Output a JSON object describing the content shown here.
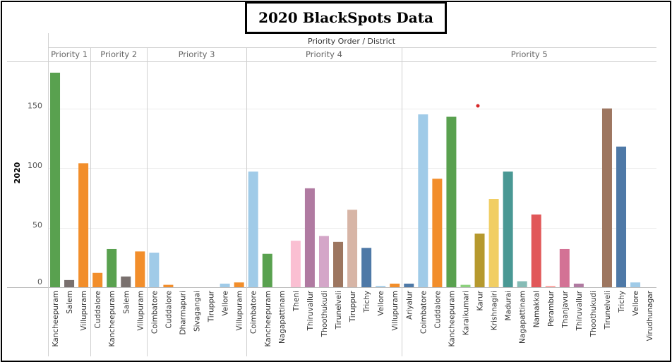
{
  "title": "2020 BlackSpots Data",
  "chart_data": {
    "type": "bar",
    "title": "2020 BlackSpots Data",
    "header": "Priority Order  /  District",
    "ylabel": "2020",
    "ylim": [
      0,
      180
    ],
    "yticks": [
      0,
      50,
      100,
      150
    ],
    "grid": true,
    "groups": [
      {
        "name": "Priority 1",
        "categories": [
          "Kancheepuram",
          "Salem",
          "Villupuram"
        ],
        "values": [
          180,
          6,
          104
        ],
        "colors": [
          "#59a14f",
          "#79706e",
          "#f28e2b"
        ]
      },
      {
        "name": "Priority 2",
        "categories": [
          "Cuddalore",
          "Kancheepuram",
          "Salem",
          "Villupuram"
        ],
        "values": [
          12,
          32,
          9,
          30
        ],
        "colors": [
          "#f28e2b",
          "#59a14f",
          "#79706e",
          "#f28e2b"
        ]
      },
      {
        "name": "Priority 3",
        "categories": [
          "Coimbatore",
          "Cuddalore",
          "Dharmapuri",
          "Sivagangai",
          "Tiruppur",
          "Vellore",
          "Villupuram"
        ],
        "values": [
          29,
          2,
          0,
          0,
          0,
          3,
          4
        ],
        "colors": [
          "#a0cbe8",
          "#f28e2b",
          "#bab0ac",
          "#bab0ac",
          "#d4a6c8",
          "#a0cbe8",
          "#f28e2b"
        ]
      },
      {
        "name": "Priority 4",
        "categories": [
          "Coimbatore",
          "Kancheepuram",
          "Nagapattinam",
          "Theni",
          "Thiruvallur",
          "Thoothukudi",
          "Tirunelveli",
          "Tiruppur",
          "Trichy",
          "Vellore",
          "Villupuram"
        ],
        "values": [
          97,
          28,
          0,
          39,
          83,
          43,
          38,
          65,
          33,
          1,
          3
        ],
        "colors": [
          "#a0cbe8",
          "#59a14f",
          "#86bcb6",
          "#fabfd2",
          "#b07aa1",
          "#d4a6c8",
          "#9d7660",
          "#d7b5a6",
          "#4e79a7",
          "#a0cbe8",
          "#f28e2b"
        ]
      },
      {
        "name": "Priority 5",
        "categories": [
          "Ariyalur",
          "Coimbatore",
          "Cuddalore",
          "Kancheepuram",
          "Karaikumari",
          "Karur",
          "Krishnagiri",
          "Madurai",
          "Nagapattinam",
          "Namakkal",
          "Perambur",
          "Thanjavur",
          "Thiruvallur",
          "Thoothukudi",
          "Tirunelveli",
          "Trichy",
          "Vellore",
          "Virudhunagar"
        ],
        "values": [
          3,
          145,
          91,
          143,
          2,
          45,
          74,
          97,
          5,
          61,
          1,
          32,
          3,
          0,
          150,
          118,
          4,
          0
        ],
        "colors": [
          "#4e79a7",
          "#a0cbe8",
          "#f28e2b",
          "#59a14f",
          "#8cd17d",
          "#b6992d",
          "#f1ce63",
          "#499894",
          "#86bcb6",
          "#e15759",
          "#ff9d9a",
          "#d37295",
          "#b07aa1",
          "#d4a6c8",
          "#9d7660",
          "#4e79a7",
          "#a0cbe8",
          "#79706e"
        ]
      }
    ]
  }
}
